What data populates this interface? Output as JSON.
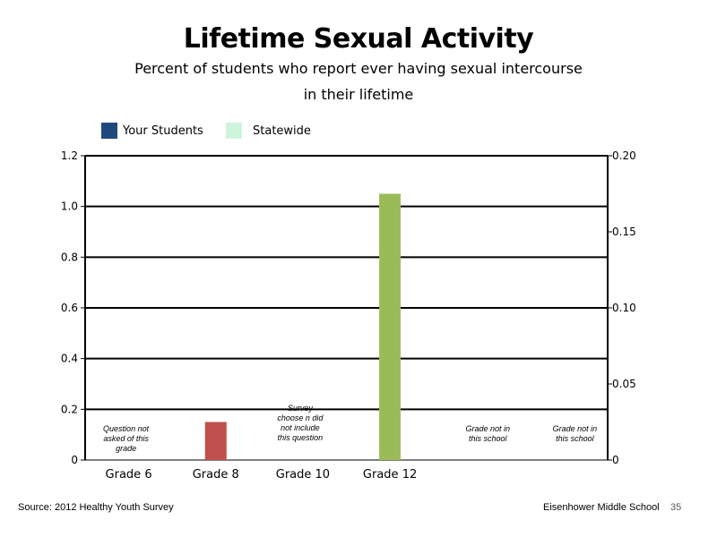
{
  "title": "Lifetime Sexual Activity",
  "subtitle_line1": "Percent of students who report ever having sexual intercourse",
  "subtitle_line2": "in their lifetime",
  "legend": [
    {
      "label": "Your Students",
      "color": "#1f497d"
    },
    {
      "label": "Statewide",
      "color": "#ccf5dc"
    }
  ],
  "chart_data": {
    "type": "bar",
    "categories": [
      "Grade 6",
      "Grade 8",
      "Grade 10",
      "Grade 12",
      "",
      ""
    ],
    "series": [
      {
        "name": "Your Students",
        "values": [
          null,
          0.15,
          null,
          1.05,
          null,
          null
        ],
        "colors": [
          null,
          "#c0504d",
          null,
          "#9bbb59",
          null,
          null
        ]
      }
    ],
    "y_left": {
      "min": 0,
      "max": 1.2,
      "ticks": [
        "0",
        "0.2",
        "0.4",
        "0.6",
        "0.8",
        "1.0",
        "1.2"
      ]
    },
    "y_right": {
      "min": 0,
      "max": 0.2,
      "ticks": [
        "0",
        "0.05",
        "0.10",
        "0.15",
        "0.20"
      ]
    },
    "grid": true,
    "annotations": [
      {
        "category_index": 0,
        "lines": [
          "Question not",
          "asked of this",
          "grade"
        ]
      },
      {
        "category_index": 2,
        "lines": [
          "Survey",
          "choose n did",
          "not include",
          "this question"
        ]
      },
      {
        "category_index": 4,
        "lines": [
          "Grade not in",
          "this school"
        ]
      },
      {
        "category_index": 5,
        "lines": [
          "Grade not in",
          "this school"
        ]
      }
    ]
  },
  "footer": {
    "source": "Source: 2012 Healthy Youth Survey",
    "school": "Eisenhower Middle  School",
    "page": "35"
  }
}
